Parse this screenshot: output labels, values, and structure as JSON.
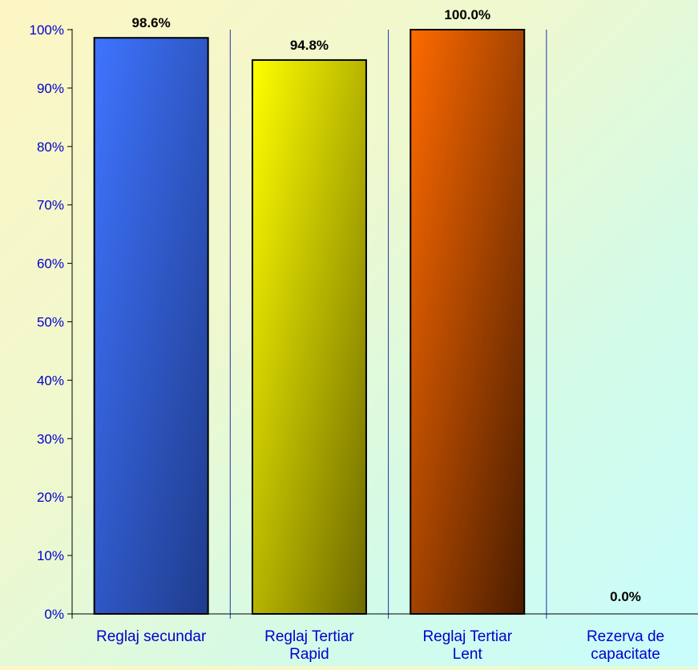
{
  "chart_data": {
    "type": "bar",
    "title": "",
    "xlabel": "",
    "ylabel": "",
    "categories": [
      [
        "Reglaj secundar"
      ],
      [
        "Reglaj Tertiar",
        "Rapid"
      ],
      [
        "Reglaj Tertiar",
        "Lent"
      ],
      [
        "Rezerva de",
        "capacitate"
      ]
    ],
    "values": [
      98.6,
      94.8,
      100.0,
      0.0
    ],
    "value_labels": [
      "98.6%",
      "94.8%",
      "100.0%",
      "0.0%"
    ],
    "ylim": [
      0,
      100
    ],
    "y_ticks": [
      "0%",
      "10%",
      "20%",
      "30%",
      "40%",
      "50%",
      "60%",
      "70%",
      "80%",
      "90%",
      "100%"
    ],
    "grid": false,
    "legend": "none",
    "colors": {
      "bars": [
        {
          "light": "#3f74ff",
          "dark": "#1f3c8c"
        },
        {
          "light": "#ffff00",
          "dark": "#6e6a00"
        },
        {
          "light": "#ff6a00",
          "dark": "#4a1d00"
        },
        {
          "light": "#999999",
          "dark": "#333333"
        }
      ],
      "axis_text": "#0000cc",
      "separator": "#2233aa",
      "value_label": "#000000"
    }
  }
}
